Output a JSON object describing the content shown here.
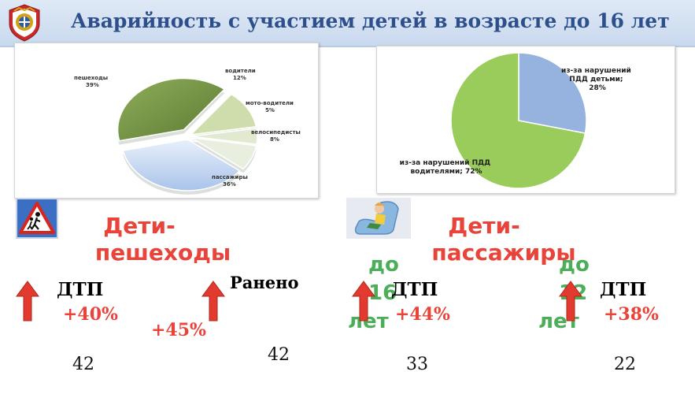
{
  "header": {
    "title": "Аварийность с участием детей в возрасте до 16 лет",
    "emblem_icon": "traffic-police-emblem-icon"
  },
  "chart_data": [
    {
      "type": "pie",
      "title": "",
      "slices": [
        {
          "label": "пешеходы",
          "value": 39,
          "value_label": "39%",
          "color": "#7a9a4a"
        },
        {
          "label": "водители",
          "value": 12,
          "value_label": "12%",
          "color": "#cfdcab"
        },
        {
          "label": "мото-водители",
          "value": 5,
          "value_label": "5%",
          "color": "#e1ead0"
        },
        {
          "label": "велосипедисты",
          "value": 8,
          "value_label": "8%",
          "color": "#e9efdf"
        },
        {
          "label": "пассажиры",
          "value": 36,
          "value_label": "36%",
          "color": "#c6d7f1"
        }
      ],
      "style": "3d-exploded"
    },
    {
      "type": "pie",
      "title": "",
      "slices": [
        {
          "label": "из-за нарушений ПДД детьми;",
          "value": 28,
          "value_label": "28%",
          "color": "#95b3de"
        },
        {
          "label": "из-за нарушений ПДД водителями;",
          "value": 72,
          "value_label": "72%",
          "color": "#99cc5a"
        }
      ]
    }
  ],
  "sections": {
    "pedestrians": {
      "heading_line1": "Дети-",
      "heading_line2": "пешеходы",
      "icon": "pedestrian-crossing-sign-icon",
      "dtp_label": "ДТП",
      "dtp_change": "+40%",
      "dtp_count": "42",
      "injured_label": "Ранено",
      "injured_change": "+45%",
      "injured_count": "42"
    },
    "passengers": {
      "heading_line1": "Дети-",
      "heading_line2": "пассажиры",
      "icon": "child-car-seat-icon",
      "age_16_line1": "до 16",
      "age_16_line2": "лет",
      "dtp16_label": "ДТП",
      "dtp16_change": "+44%",
      "dtp16_count": "33",
      "age_12_line1": "до 12",
      "age_12_line2": "лет",
      "dtp12_label": "ДТП",
      "dtp12_change": "+38%",
      "dtp12_count": "22"
    }
  },
  "colors": {
    "title": "#2d4f8c",
    "accent_red": "#e8443a",
    "accent_green": "#4cae59",
    "arrow_red": "#e23a2e"
  }
}
